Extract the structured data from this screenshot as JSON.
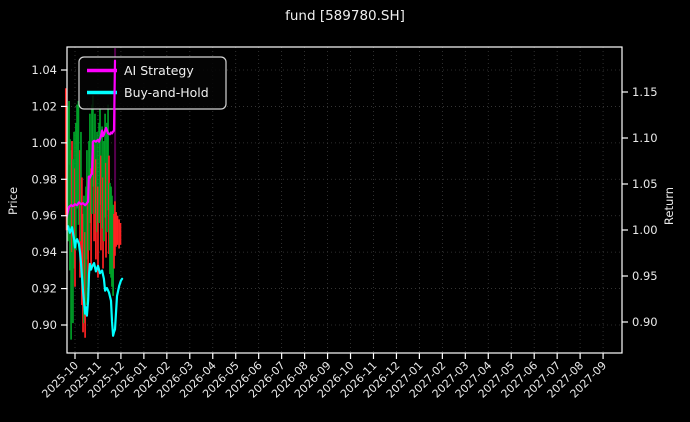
{
  "chart_data": {
    "type": "line+candlestick",
    "title": "fund [589780.SH]",
    "ylabel_left": "Price",
    "ylabel_right": "Return",
    "grid": true,
    "background": "#000000",
    "axis_color": "#ffffff",
    "grid_color": "#3c3c3c",
    "tick_text_color": "#e9e9e9",
    "x_tick_labels": [
      "2025-10",
      "2025-11",
      "2025-12",
      "2026-01",
      "2026-02",
      "2026-03",
      "2026-04",
      "2026-05",
      "2026-06",
      "2026-07",
      "2026-08",
      "2026-09",
      "2026-10",
      "2026-11",
      "2026-12",
      "2027-01",
      "2027-02",
      "2027-03",
      "2027-04",
      "2027-05",
      "2027-06",
      "2027-07",
      "2027-08",
      "2027-09"
    ],
    "y_left_tick_labels": [
      "1.04",
      "1.02",
      "1.00",
      "0.98",
      "0.96",
      "0.94",
      "0.92",
      "0.90"
    ],
    "y_left_tick_values": [
      1.04,
      1.02,
      1.0,
      0.98,
      0.96,
      0.94,
      0.92,
      0.9
    ],
    "y_right_tick_labels": [
      "1.15",
      "1.10",
      "1.05",
      "1.00",
      "0.95",
      "0.90"
    ],
    "y_right_tick_values": [
      1.15,
      1.1,
      1.05,
      1.0,
      0.95,
      0.9
    ],
    "y_left_range": [
      0.8846,
      1.0526
    ],
    "y_right_range": [
      0.8663,
      1.1989
    ],
    "legend": {
      "position": "upper-left",
      "entries": [
        {
          "label": "AI Strategy",
          "color": "#ff00ff"
        },
        {
          "label": "Buy-and-Hold",
          "color": "#00ffff"
        }
      ]
    },
    "series": [
      {
        "name": "AI Strategy",
        "axis": "right",
        "color": "#ff00ff",
        "points": [
          [
            -0.44,
            1.004
          ],
          [
            -0.35,
            1.016
          ],
          [
            -0.26,
            1.025
          ],
          [
            -0.17,
            1.027
          ],
          [
            -0.09,
            1.026
          ],
          [
            0.0,
            1.028
          ],
          [
            0.09,
            1.027
          ],
          [
            0.17,
            1.03
          ],
          [
            0.26,
            1.028
          ],
          [
            0.35,
            1.029
          ],
          [
            0.44,
            1.027
          ],
          [
            0.52,
            1.029
          ],
          [
            0.57,
            1.031
          ],
          [
            0.6,
            1.058
          ],
          [
            0.65,
            1.057
          ],
          [
            0.7,
            1.06
          ],
          [
            0.74,
            1.061
          ],
          [
            0.78,
            1.096
          ],
          [
            0.83,
            1.097
          ],
          [
            0.91,
            1.096
          ],
          [
            1.0,
            1.098
          ],
          [
            1.05,
            1.096
          ],
          [
            1.13,
            1.102
          ],
          [
            1.18,
            1.108
          ],
          [
            1.22,
            1.102
          ],
          [
            1.26,
            1.104
          ],
          [
            1.31,
            1.108
          ],
          [
            1.35,
            1.111
          ],
          [
            1.44,
            1.105
          ],
          [
            1.52,
            1.104
          ],
          [
            1.57,
            1.106
          ],
          [
            1.61,
            1.105
          ],
          [
            1.66,
            1.107
          ],
          [
            1.7,
            1.108
          ],
          [
            1.74,
            1.184
          ]
        ]
      },
      {
        "name": "Buy-and-Hold",
        "axis": "right",
        "color": "#00ffff",
        "points": [
          [
            -0.44,
            1.005
          ],
          [
            -0.35,
            1.001
          ],
          [
            -0.3,
            1.004
          ],
          [
            -0.22,
            0.997
          ],
          [
            -0.13,
            1.003
          ],
          [
            -0.04,
            0.99
          ],
          [
            0.0,
            0.981
          ],
          [
            0.04,
            0.988
          ],
          [
            0.09,
            0.99
          ],
          [
            0.17,
            0.985
          ],
          [
            0.22,
            0.975
          ],
          [
            0.26,
            0.964
          ],
          [
            0.35,
            0.934
          ],
          [
            0.44,
            0.909
          ],
          [
            0.48,
            0.916
          ],
          [
            0.52,
            0.907
          ],
          [
            0.57,
            0.923
          ],
          [
            0.61,
            0.952
          ],
          [
            0.65,
            0.963
          ],
          [
            0.7,
            0.957
          ],
          [
            0.74,
            0.96
          ],
          [
            0.83,
            0.964
          ],
          [
            0.91,
            0.955
          ],
          [
            1.0,
            0.961
          ],
          [
            1.09,
            0.953
          ],
          [
            1.18,
            0.956
          ],
          [
            1.26,
            0.947
          ],
          [
            1.31,
            0.934
          ],
          [
            1.39,
            0.937
          ],
          [
            1.48,
            0.932
          ],
          [
            1.57,
            0.923
          ],
          [
            1.61,
            0.901
          ],
          [
            1.66,
            0.885
          ],
          [
            1.7,
            0.889
          ],
          [
            1.74,
            0.892
          ],
          [
            1.79,
            0.912
          ],
          [
            1.83,
            0.928
          ],
          [
            1.92,
            0.939
          ],
          [
            2.0,
            0.945
          ],
          [
            2.05,
            0.947
          ]
        ]
      }
    ],
    "candles": {
      "axis": "left",
      "up_color": "#00a028",
      "down_color": "#ff2222",
      "items": [
        [
          -0.4,
          1.03,
          0.96,
          "d"
        ],
        [
          -0.37,
          1.006,
          0.952,
          "d"
        ],
        [
          -0.3,
          1.02,
          0.946,
          "u"
        ],
        [
          -0.26,
          1.023,
          0.988,
          "u"
        ],
        [
          -0.22,
          1.002,
          0.93,
          "u"
        ],
        [
          -0.17,
          0.996,
          0.892,
          "u"
        ],
        [
          -0.13,
          1.001,
          0.94,
          "d"
        ],
        [
          -0.09,
          0.991,
          0.901,
          "u"
        ],
        [
          -0.04,
          1.006,
          0.931,
          "u"
        ],
        [
          0.0,
          0.986,
          0.921,
          "d"
        ],
        [
          0.04,
          1.011,
          0.941,
          "u"
        ],
        [
          0.09,
          1.021,
          0.964,
          "u"
        ],
        [
          0.15,
          1.023,
          0.955,
          "u"
        ],
        [
          0.22,
          0.996,
          0.926,
          "d"
        ],
        [
          0.26,
          1.006,
          0.946,
          "u"
        ],
        [
          0.3,
          0.981,
          0.911,
          "d"
        ],
        [
          0.35,
          0.961,
          0.896,
          "d"
        ],
        [
          0.39,
          0.971,
          0.901,
          "u"
        ],
        [
          0.44,
          0.951,
          0.893,
          "d"
        ],
        [
          0.48,
          0.976,
          0.911,
          "u"
        ],
        [
          0.52,
          0.996,
          0.936,
          "u"
        ],
        [
          0.57,
          0.971,
          0.916,
          "d"
        ],
        [
          0.61,
          1.001,
          0.941,
          "u"
        ],
        [
          0.65,
          1.016,
          0.956,
          "u"
        ],
        [
          0.7,
          0.986,
          0.931,
          "d"
        ],
        [
          0.74,
          1.021,
          0.961,
          "u"
        ],
        [
          0.78,
          1.026,
          0.976,
          "u"
        ],
        [
          0.83,
          0.999,
          0.946,
          "d"
        ],
        [
          0.87,
          1.016,
          0.961,
          "u"
        ],
        [
          0.91,
          0.991,
          0.936,
          "d"
        ],
        [
          0.96,
          1.006,
          0.951,
          "u"
        ],
        [
          1.0,
          0.976,
          0.926,
          "d"
        ],
        [
          1.05,
          1.011,
          0.956,
          "u"
        ],
        [
          1.09,
          1.019,
          0.966,
          "u"
        ],
        [
          1.13,
          0.993,
          0.941,
          "d"
        ],
        [
          1.18,
          1.009,
          0.953,
          "u"
        ],
        [
          1.22,
          0.981,
          0.931,
          "d"
        ],
        [
          1.26,
          1.001,
          0.946,
          "u"
        ],
        [
          1.31,
          1.016,
          0.959,
          "u"
        ],
        [
          1.35,
          0.989,
          0.937,
          "d"
        ],
        [
          1.39,
          1.011,
          0.951,
          "u"
        ],
        [
          1.44,
          1.021,
          0.963,
          "u"
        ],
        [
          1.48,
          0.993,
          0.939,
          "d"
        ],
        [
          1.52,
          0.978,
          0.928,
          "u"
        ],
        [
          1.57,
          0.976,
          0.926,
          "u"
        ],
        [
          1.61,
          0.971,
          0.921,
          "u"
        ],
        [
          1.66,
          0.966,
          0.916,
          "u"
        ],
        [
          1.7,
          0.961,
          0.931,
          "d"
        ],
        [
          1.74,
          0.968,
          0.938,
          "d"
        ],
        [
          1.79,
          0.962,
          0.943,
          "d"
        ],
        [
          1.85,
          0.96,
          0.944,
          "d"
        ],
        [
          1.92,
          0.958,
          0.942,
          "d"
        ],
        [
          1.98,
          0.956,
          0.944,
          "d"
        ]
      ],
      "faint_wick": {
        "m": 1.745,
        "high": 1.052,
        "low": 0.968,
        "color": "#55004d"
      }
    }
  }
}
